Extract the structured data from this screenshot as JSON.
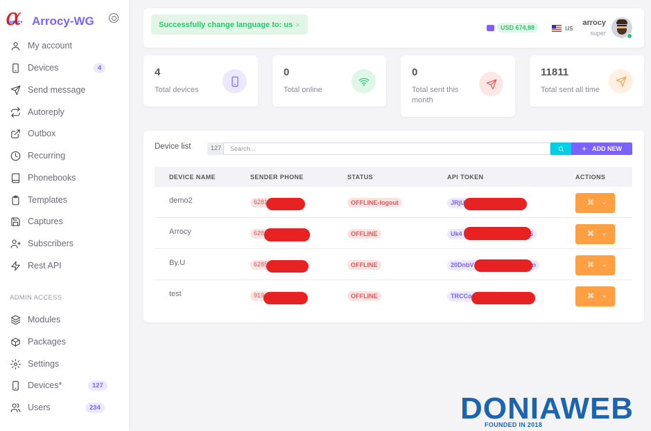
{
  "brand": {
    "name": "Arrocy-WG",
    "logo_text": "ARROCY"
  },
  "sidebar": {
    "items": [
      {
        "label": "My account",
        "icon": "user-icon"
      },
      {
        "label": "Devices",
        "icon": "device-icon",
        "badge": "4"
      },
      {
        "label": "Send message",
        "icon": "send-icon"
      },
      {
        "label": "Autoreply",
        "icon": "repeat-icon"
      },
      {
        "label": "Outbox",
        "icon": "external-link-icon"
      },
      {
        "label": "Recurring",
        "icon": "clock-icon"
      },
      {
        "label": "Phonebooks",
        "icon": "book-icon"
      },
      {
        "label": "Templates",
        "icon": "clipboard-icon"
      },
      {
        "label": "Captures",
        "icon": "save-icon"
      },
      {
        "label": "Subscribers",
        "icon": "user-plus-icon"
      },
      {
        "label": "Rest API",
        "icon": "zap-icon"
      }
    ],
    "section_title": "ADMIN ACCESS",
    "admin_items": [
      {
        "label": "Modules",
        "icon": "layers-icon"
      },
      {
        "label": "Packages",
        "icon": "package-icon"
      },
      {
        "label": "Settings",
        "icon": "settings-icon"
      },
      {
        "label": "Devices*",
        "icon": "device-icon",
        "badge": "127"
      },
      {
        "label": "Users",
        "icon": "users-icon",
        "badge": "234"
      }
    ]
  },
  "topbar": {
    "toast": "Successfully change language to: us",
    "toast_close": "×",
    "balance": "USD 674,88",
    "language": "us",
    "user_name": "arrocy",
    "user_role": "super"
  },
  "stats": [
    {
      "value": "4",
      "label": "Total devices",
      "icon": "device-icon",
      "color": "#7b61ff"
    },
    {
      "value": "0",
      "label": "Total online",
      "icon": "wifi-icon",
      "color": "#28c76f"
    },
    {
      "value": "0",
      "label": "Total sent this month",
      "icon": "send-icon",
      "color": "#ea5455"
    },
    {
      "value": "11811",
      "label": "Total sent all time",
      "icon": "send-icon",
      "color": "#ff9f43"
    }
  ],
  "device_list": {
    "title": "Device list",
    "count": "127",
    "search_placeholder": "Search...",
    "add_label": "ADD NEW",
    "columns": [
      "DEVICE NAME",
      "SENDER PHONE",
      "STATUS",
      "API TOKEN",
      "ACTIONS"
    ],
    "rows": [
      {
        "name": "demo2",
        "phone": "6281",
        "status": "OFFLINE-logout",
        "token": "JRjU"
      },
      {
        "name": "Arrocy",
        "phone": "628",
        "status": "OFFLINE",
        "token": "Uk4",
        "token_tail": "6"
      },
      {
        "name": "By.U",
        "phone": "6285",
        "status": "OFFLINE",
        "token": "20DnbV",
        "token_tail": "n"
      },
      {
        "name": "test",
        "phone": "919",
        "status": "OFFLINE",
        "token": "TRCCo"
      }
    ],
    "action_glyph": "⌘"
  },
  "watermark": {
    "text": "DONIAWEB",
    "sub": "FOUNDED IN 2018"
  },
  "colors": {
    "primary": "#7b61ff",
    "success": "#28c76f",
    "danger": "#ea5455",
    "warning": "#ff9f43",
    "info": "#00cfe8"
  }
}
